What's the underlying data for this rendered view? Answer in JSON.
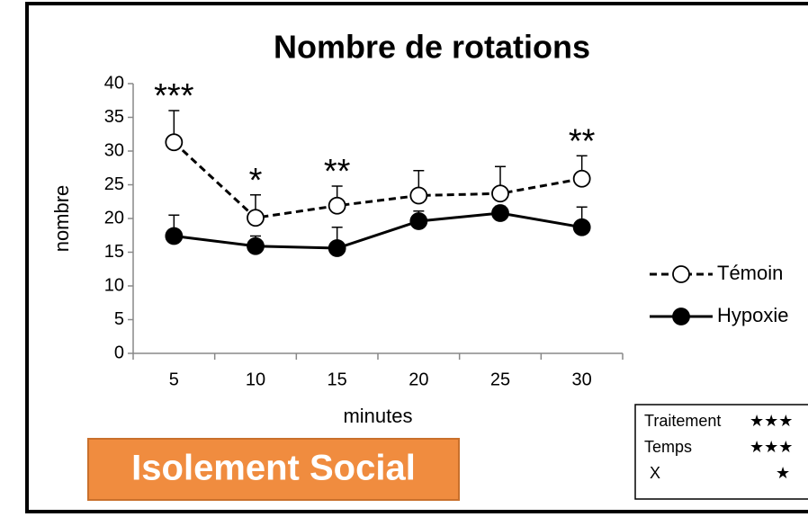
{
  "chart_data": {
    "type": "line",
    "title": "Nombre de rotations",
    "x_label": "minutes",
    "y_label": "nombre",
    "categories": [
      "5",
      "10",
      "15",
      "20",
      "25",
      "30"
    ],
    "ylim": [
      0,
      40
    ],
    "yticks": [
      0,
      5,
      10,
      15,
      20,
      25,
      30,
      35,
      40
    ],
    "series": [
      {
        "name": "Témoin",
        "color": "#000000",
        "dashed": true,
        "filled": false,
        "values": [
          31.3,
          20.1,
          21.9,
          23.4,
          23.7,
          25.9
        ],
        "errors": [
          4.7,
          3.4,
          2.9,
          3.7,
          4.0,
          3.4
        ]
      },
      {
        "name": "Hypoxie",
        "color": "#000000",
        "dashed": false,
        "filled": true,
        "values": [
          17.4,
          15.9,
          15.6,
          19.6,
          20.8,
          18.7
        ],
        "errors": [
          3.1,
          1.5,
          3.1,
          1.5,
          1.0,
          3.0
        ]
      }
    ],
    "significance": [
      "***",
      "*",
      "**",
      null,
      null,
      "**"
    ]
  },
  "badge": "Isolement Social",
  "stats_table": {
    "rows": [
      [
        "Traitement",
        "★★★"
      ],
      [
        "Temps",
        "★★★"
      ],
      [
        "X",
        "★"
      ]
    ]
  }
}
